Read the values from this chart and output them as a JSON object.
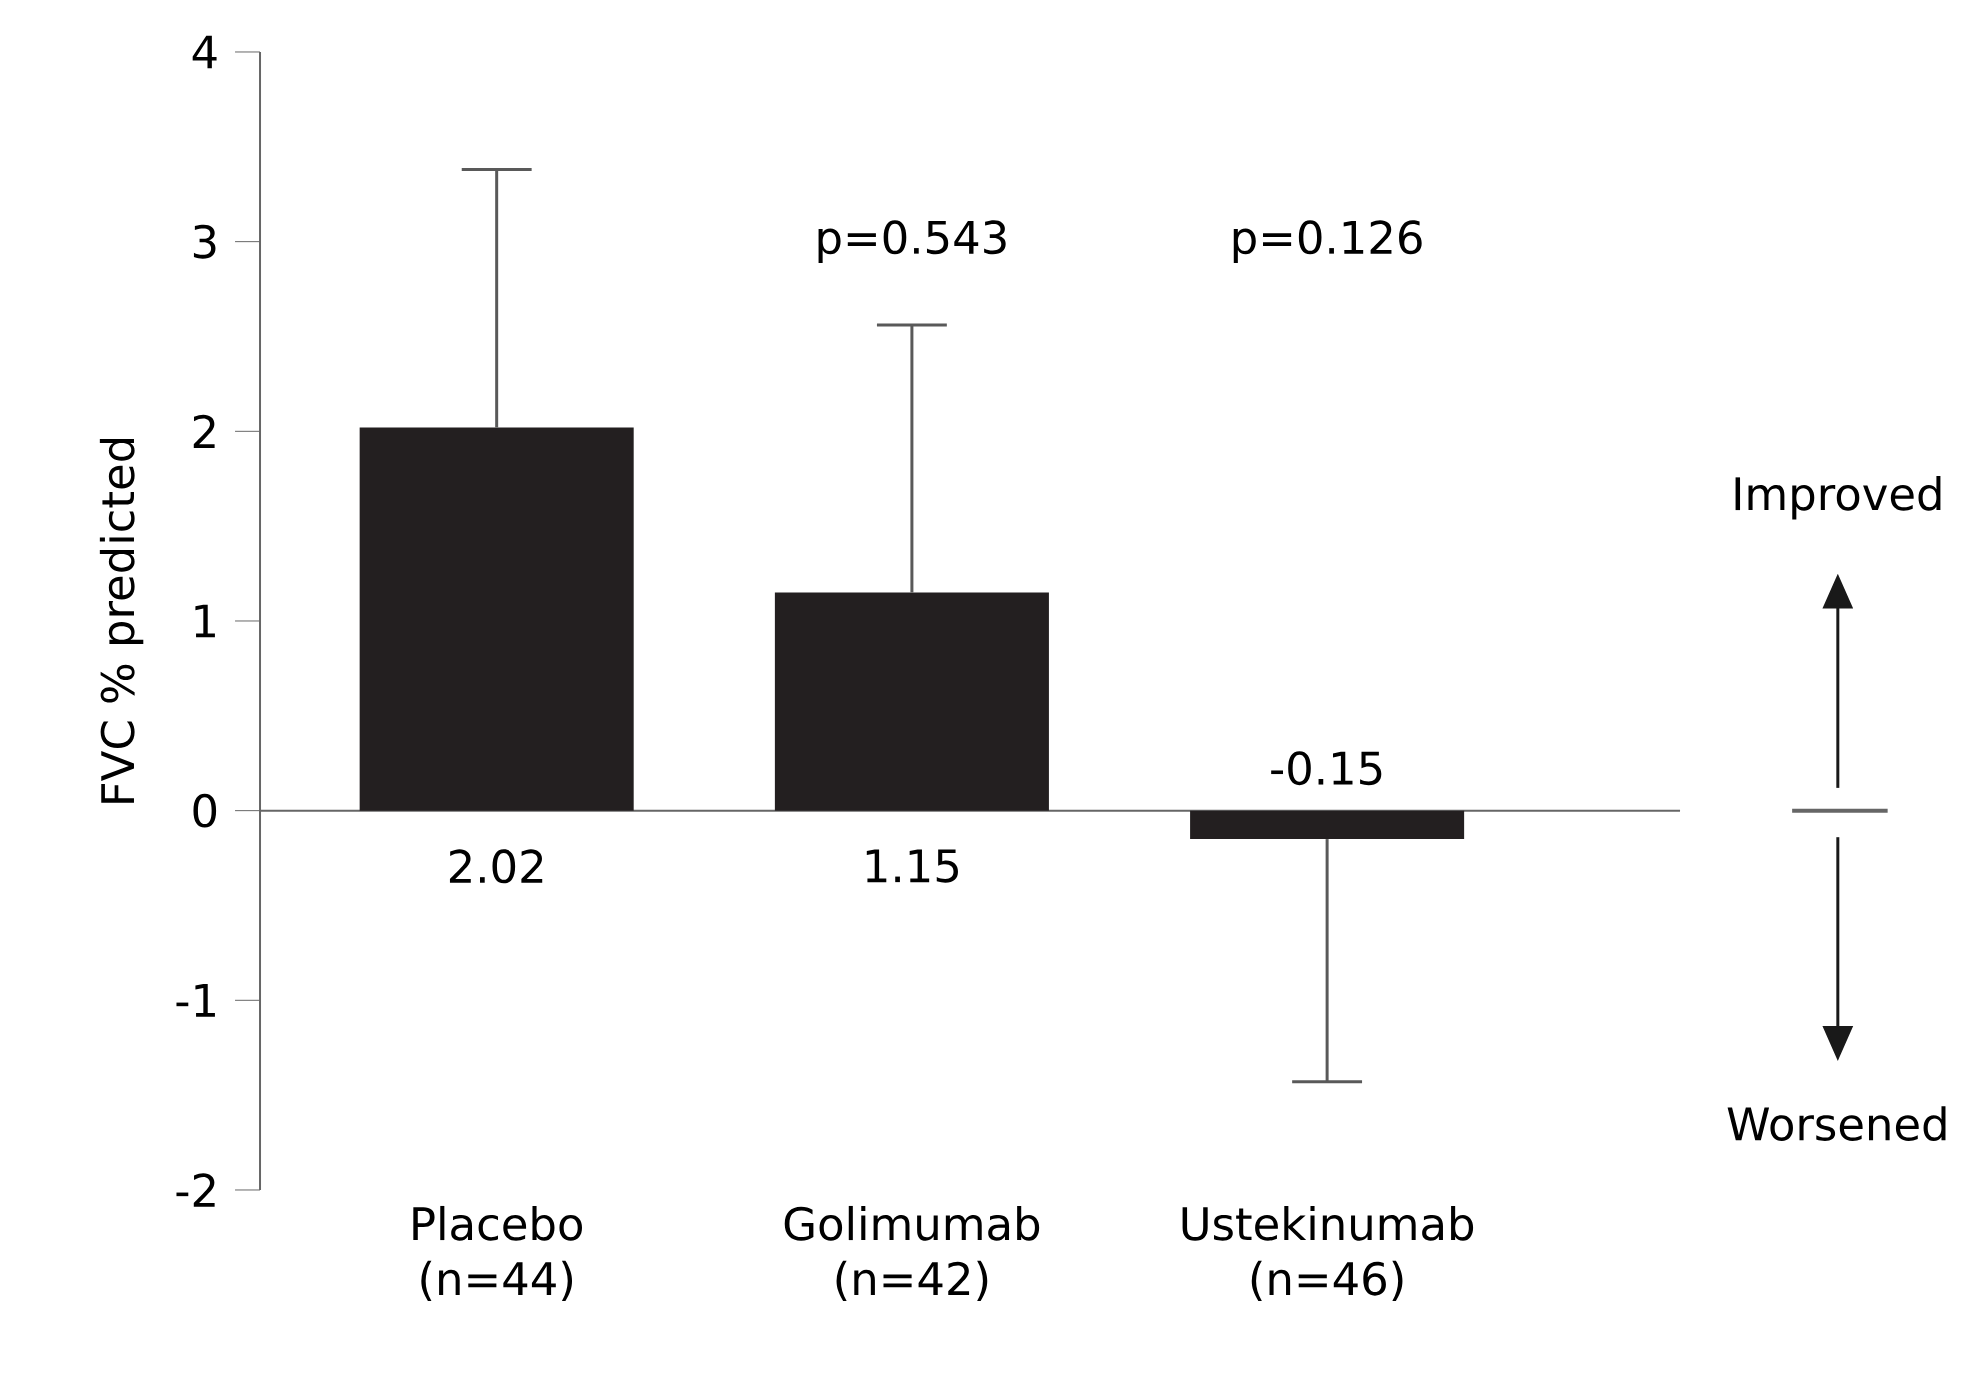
{
  "chart_data": {
    "type": "bar",
    "ylabel": "FVC % predicted",
    "categories": [
      "Placebo (n=44)",
      "Golimumab (n=42)",
      "Ustekinumab (n=46)"
    ],
    "values": [
      2.02,
      1.15,
      -0.15
    ],
    "color": "#231f20",
    "errors": [
      [
        2.02,
        3.38
      ],
      [
        1.15,
        2.56
      ],
      [
        -1.43,
        -0.15
      ]
    ],
    "data_labels": true,
    "value_labels": [
      "2.02",
      "1.15",
      "-0.15"
    ],
    "ylim": [
      -2,
      4
    ],
    "yticks": [
      -2,
      -1,
      0,
      1,
      2,
      3,
      4
    ],
    "annotations": [
      "p=0.543",
      "p=0.126",
      "Improved",
      "Worsened"
    ]
  }
}
